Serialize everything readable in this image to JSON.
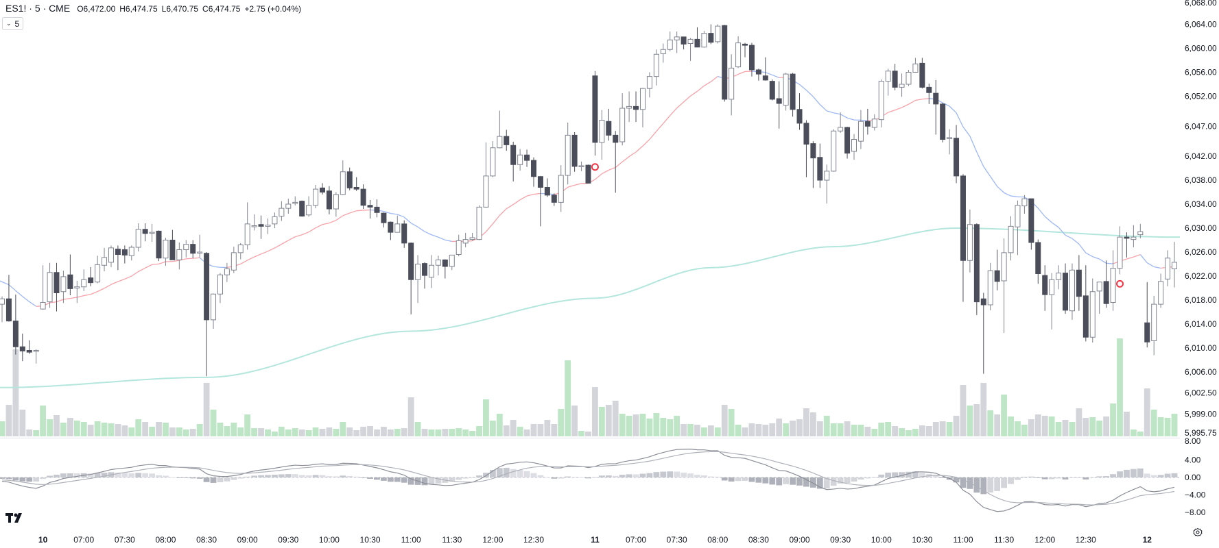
{
  "header": {
    "symbol": "ES1!",
    "interval": "5",
    "exchange": "CME",
    "sep": "·",
    "open_label": "O",
    "open": "6,472.00",
    "high_label": "H",
    "high": "6,474.75",
    "low_label": "L",
    "low": "6,470.75",
    "close_label": "C",
    "close": "6,474.75",
    "change": "+2.75 (+0.04%)"
  },
  "interval_dropdown": {
    "icon": "chevron-down-icon",
    "value": "5"
  },
  "price_axis": [
    "6,068.00",
    "6,064.00",
    "6,060.00",
    "6,056.00",
    "6,052.00",
    "6,047.00",
    "6,042.00",
    "6,038.00",
    "6,034.00",
    "6,030.00",
    "6,026.00",
    "6,022.00",
    "6,018.00",
    "6,014.00",
    "6,010.00",
    "6,006.00",
    "6,002.50",
    "5,999.00",
    "5,995.75"
  ],
  "macd_axis": [
    "8.00",
    "4.00",
    "0.00",
    "−4.00",
    "−8.00"
  ],
  "time_axis": [
    {
      "label": "10",
      "bold": true
    },
    {
      "label": "07:00"
    },
    {
      "label": "07:30"
    },
    {
      "label": "08:00"
    },
    {
      "label": "08:30"
    },
    {
      "label": "09:00"
    },
    {
      "label": "09:30"
    },
    {
      "label": "10:00"
    },
    {
      "label": "10:30"
    },
    {
      "label": "11:00"
    },
    {
      "label": "11:30"
    },
    {
      "label": "12:00"
    },
    {
      "label": "12:30"
    },
    {
      "label": "11",
      "bold": true
    },
    {
      "label": "07:00"
    },
    {
      "label": "07:30"
    },
    {
      "label": "08:00"
    },
    {
      "label": "08:30"
    },
    {
      "label": "09:00"
    },
    {
      "label": "09:30"
    },
    {
      "label": "10:00"
    },
    {
      "label": "10:30"
    },
    {
      "label": "11:00"
    },
    {
      "label": "11:30"
    },
    {
      "label": "12:00"
    },
    {
      "label": "12:30"
    },
    {
      "label": "12",
      "bold": true
    }
  ],
  "colors": {
    "bull_body": "#ffffff",
    "bull_border": "#7f838f",
    "bear_body": "#4b4e5a",
    "volume_up": "#bde5c6",
    "volume_down": "#d3d5db",
    "ema_above": "#f7a1a8",
    "ema_below": "#9db7f5",
    "long_ma": "#b3e6dc",
    "macd_line": "#8a8d96",
    "signal_line": "#aeb1b8",
    "signal_marker": "#f23645"
  },
  "chart_data": {
    "type": "candlestick",
    "symbol": "ES1!",
    "timeframe_minutes": 5,
    "y_range": [
      5995.75,
      6068.0
    ],
    "ohlc": [
      [
        6017.3,
        6018.6,
        6014.3,
        6018.2
      ],
      [
        6018.2,
        6022.2,
        6014.4,
        6014.5
      ],
      [
        6014.5,
        6018.9,
        6008.9,
        6010.2
      ],
      [
        6010.2,
        6012.4,
        6007.8,
        6009.5
      ],
      [
        6009.6,
        6011.3,
        6009.0,
        6009.3
      ],
      [
        6009.5,
        6009.8,
        6007.4,
        6009.6
      ],
      [
        6016.5,
        6023.8,
        6016.4,
        6017.6
      ],
      [
        6017.7,
        6024.2,
        6016.7,
        6022.6
      ],
      [
        6022.6,
        6024.2,
        6016.1,
        6019.2
      ],
      [
        6019.4,
        6022.9,
        6017.5,
        6021.9
      ],
      [
        6022.2,
        6025.6,
        6018.8,
        6019.9
      ],
      [
        6020.0,
        6021.2,
        6017.5,
        6020.2
      ],
      [
        6020.2,
        6023.1,
        6019.5,
        6021.4
      ],
      [
        6021.7,
        6023.5,
        6020.3,
        6020.9
      ],
      [
        6021.0,
        6025.4,
        6020.8,
        6023.9
      ],
      [
        6023.8,
        6026.7,
        6022.8,
        6025.1
      ],
      [
        6024.3,
        6027.1,
        6023.5,
        6026.7
      ],
      [
        6026.5,
        6027.1,
        6023.0,
        6025.6
      ],
      [
        6026.4,
        6027.1,
        6024.1,
        6025.5
      ],
      [
        6025.4,
        6027.1,
        6024.6,
        6026.8
      ],
      [
        6026.8,
        6030.8,
        6026.1,
        6029.8
      ],
      [
        6029.8,
        6030.8,
        6027.8,
        6029.1
      ],
      [
        6029.2,
        6030.7,
        6027.7,
        6029.3
      ],
      [
        6029.5,
        6029.6,
        6024.5,
        6025.0
      ],
      [
        6025.0,
        6028.4,
        6023.7,
        6028.0
      ],
      [
        6028.0,
        6029.7,
        6024.7,
        6024.7
      ],
      [
        6024.7,
        6027.6,
        6023.1,
        6026.4
      ],
      [
        6026.4,
        6028.0,
        6025.1,
        6027.3
      ],
      [
        6027.3,
        6028.0,
        6025.0,
        6025.8
      ],
      [
        6025.9,
        6028.9,
        6025.1,
        6026.0
      ],
      [
        6025.8,
        6026.0,
        6005.3,
        6014.7
      ],
      [
        6014.7,
        6019.1,
        6013.2,
        6019.0
      ],
      [
        6019.0,
        6022.5,
        6017.5,
        6022.2
      ],
      [
        6022.2,
        6024.2,
        6021.0,
        6023.2
      ],
      [
        6023.0,
        6026.9,
        6022.5,
        6025.9
      ],
      [
        6025.9,
        6027.5,
        6024.8,
        6027.2
      ],
      [
        6027.2,
        6034.3,
        6026.4,
        6030.7
      ],
      [
        6030.3,
        6032.3,
        6029.6,
        6030.4
      ],
      [
        6030.6,
        6032.1,
        6028.2,
        6030.3
      ],
      [
        6030.3,
        6031.6,
        6029.0,
        6030.5
      ],
      [
        6030.7,
        6032.6,
        6030.0,
        6031.9
      ],
      [
        6032.0,
        6034.5,
        6031.2,
        6033.3
      ],
      [
        6033.3,
        6034.9,
        6032.4,
        6034.0
      ],
      [
        6034.2,
        6035.3,
        6033.8,
        6034.3
      ],
      [
        6034.5,
        6034.6,
        6031.9,
        6032.0
      ],
      [
        6032.2,
        6035.3,
        6031.9,
        6033.8
      ],
      [
        6033.8,
        6037.2,
        6033.3,
        6036.5
      ],
      [
        6036.7,
        6037.5,
        6035.6,
        6036.0
      ],
      [
        6036.2,
        6037.0,
        6032.3,
        6033.2
      ],
      [
        6033.2,
        6036.0,
        6031.9,
        6035.6
      ],
      [
        6035.6,
        6041.3,
        6035.5,
        6039.4
      ],
      [
        6039.4,
        6040.1,
        6036.3,
        6036.7
      ],
      [
        6036.8,
        6038.5,
        6036.2,
        6036.5
      ],
      [
        6036.5,
        6037.3,
        6033.2,
        6033.8
      ],
      [
        6033.8,
        6034.7,
        6031.6,
        6033.5
      ],
      [
        6033.5,
        6034.8,
        6031.8,
        6032.6
      ],
      [
        6032.5,
        6032.6,
        6030.1,
        6030.9
      ],
      [
        6031.0,
        6031.1,
        6028.0,
        6029.3
      ],
      [
        6029.3,
        6032.1,
        6029.3,
        6030.7
      ],
      [
        6030.7,
        6031.3,
        6026.7,
        6027.5
      ],
      [
        6027.5,
        6027.6,
        6015.6,
        6021.4
      ],
      [
        6021.4,
        6025.5,
        6017.5,
        6024.0
      ],
      [
        6024.1,
        6024.3,
        6019.9,
        6022.1
      ],
      [
        6021.8,
        6025.5,
        6020.0,
        6023.8
      ],
      [
        6023.8,
        6025.4,
        6022.1,
        6024.7
      ],
      [
        6024.7,
        6024.8,
        6021.6,
        6023.6
      ],
      [
        6023.6,
        6025.5,
        6023.0,
        6025.5
      ],
      [
        6025.6,
        6028.9,
        6025.3,
        6027.9
      ],
      [
        6027.5,
        6029.2,
        6026.8,
        6028.1
      ],
      [
        6028.1,
        6029.2,
        6027.9,
        6028.4
      ],
      [
        6028.1,
        6033.8,
        6028.0,
        6033.5
      ],
      [
        6033.5,
        6044.3,
        6033.4,
        6038.7
      ],
      [
        6038.7,
        6044.5,
        6038.5,
        6043.4
      ],
      [
        6043.4,
        6049.6,
        6043.3,
        6045.3
      ],
      [
        6045.3,
        6046.4,
        6042.9,
        6043.9
      ],
      [
        6043.8,
        6044.4,
        6037.8,
        6040.6
      ],
      [
        6040.6,
        6043.2,
        6039.6,
        6042.2
      ],
      [
        6042.2,
        6043.1,
        6040.2,
        6041.3
      ],
      [
        6041.3,
        6041.8,
        6036.9,
        6038.6
      ],
      [
        6038.6,
        6038.7,
        6030.3,
        6036.8
      ],
      [
        6036.8,
        6038.3,
        6035.2,
        6035.5
      ],
      [
        6035.5,
        6035.8,
        6033.7,
        6034.3
      ],
      [
        6034.3,
        6040.5,
        6032.7,
        6038.8
      ],
      [
        6038.8,
        6047.6,
        6037.3,
        6045.5
      ],
      [
        6045.5,
        6046.0,
        6039.4,
        6040.3
      ],
      [
        6040.3,
        6041.1,
        6039.5,
        6040.4
      ],
      [
        6040.5,
        6040.6,
        6037.5,
        6037.5
      ],
      [
        6055.4,
        6056.2,
        6042.1,
        6044.3
      ],
      [
        6044.3,
        6049.7,
        6041.4,
        6048.0
      ],
      [
        6047.8,
        6049.9,
        6044.6,
        6045.5
      ],
      [
        6045.5,
        6046.2,
        6035.9,
        6044.3
      ],
      [
        6044.4,
        6052.5,
        6043.8,
        6050.0
      ],
      [
        6050.0,
        6052.8,
        6047.7,
        6050.3
      ],
      [
        6050.3,
        6052.8,
        6047.7,
        6049.8
      ],
      [
        6049.8,
        6053.4,
        6046.8,
        6053.3
      ],
      [
        6053.3,
        6056.0,
        6051.8,
        6055.3
      ],
      [
        6055.3,
        6059.8,
        6053.8,
        6059.0
      ],
      [
        6059.1,
        6060.8,
        6057.6,
        6059.8
      ],
      [
        6059.8,
        6062.8,
        6059.5,
        6061.4
      ],
      [
        6061.4,
        6062.8,
        6059.2,
        6061.9
      ],
      [
        6061.9,
        6061.9,
        6059.8,
        6060.7
      ],
      [
        6060.8,
        6061.7,
        6057.9,
        6061.5
      ],
      [
        6061.5,
        6063.5,
        6060.2,
        6060.2
      ],
      [
        6060.2,
        6062.9,
        6060.1,
        6062.5
      ],
      [
        6062.5,
        6064.0,
        6060.7,
        6061.0
      ],
      [
        6061.1,
        6064.0,
        6060.8,
        6063.7
      ],
      [
        6063.8,
        6063.9,
        6051.1,
        6051.5
      ],
      [
        6051.5,
        6059.0,
        6048.8,
        6056.7
      ],
      [
        6056.9,
        6062.0,
        6056.7,
        6060.9
      ],
      [
        6060.7,
        6060.9,
        6058.5,
        6060.5
      ],
      [
        6060.5,
        6060.9,
        6055.3,
        6056.4
      ],
      [
        6056.4,
        6056.6,
        6054.6,
        6055.7
      ],
      [
        6055.4,
        6058.5,
        6054.6,
        6054.7
      ],
      [
        6054.5,
        6054.8,
        6051.3,
        6051.5
      ],
      [
        6051.6,
        6054.5,
        6046.6,
        6050.8
      ],
      [
        6050.5,
        6055.9,
        6049.6,
        6055.7
      ],
      [
        6055.7,
        6055.9,
        6048.6,
        6049.8
      ],
      [
        6049.8,
        6052.5,
        6046.4,
        6047.5
      ],
      [
        6047.5,
        6048.0,
        6038.5,
        6044.0
      ],
      [
        6044.1,
        6044.5,
        6036.7,
        6041.7
      ],
      [
        6041.8,
        6044.1,
        6036.7,
        6038.0
      ],
      [
        6038.0,
        6040.6,
        6034.1,
        6039.5
      ],
      [
        6039.5,
        6046.5,
        6039.4,
        6046.2
      ],
      [
        6046.2,
        6049.3,
        6045.9,
        6046.8
      ],
      [
        6046.8,
        6046.9,
        6041.6,
        6042.5
      ],
      [
        6042.8,
        6045.7,
        6041.4,
        6044.8
      ],
      [
        6044.5,
        6049.7,
        6043.2,
        6047.8
      ],
      [
        6047.8,
        6049.9,
        6045.6,
        6047.0
      ],
      [
        6046.8,
        6049.0,
        6046.3,
        6048.2
      ],
      [
        6048.1,
        6054.8,
        6046.8,
        6054.5
      ],
      [
        6054.5,
        6056.6,
        6052.1,
        6056.2
      ],
      [
        6056.2,
        6057.4,
        6053.0,
        6053.5
      ],
      [
        6053.5,
        6055.8,
        6051.9,
        6054.0
      ],
      [
        6054.0,
        6056.4,
        6053.7,
        6056.0
      ],
      [
        6056.0,
        6058.4,
        6056.0,
        6057.4
      ],
      [
        6057.5,
        6058.4,
        6053.3,
        6053.5
      ],
      [
        6053.5,
        6054.1,
        6050.7,
        6052.6
      ],
      [
        6052.5,
        6054.7,
        6045.6,
        6050.7
      ],
      [
        6050.7,
        6050.9,
        6044.3,
        6044.8
      ],
      [
        6045.0,
        6046.5,
        6042.3,
        6045.1
      ],
      [
        6045.0,
        6047.2,
        6037.5,
        6038.7
      ],
      [
        6038.7,
        6039.0,
        6017.7,
        6024.6
      ],
      [
        6024.6,
        6033.1,
        6022.6,
        6030.6
      ],
      [
        6030.6,
        6030.8,
        6015.5,
        6017.7
      ],
      [
        6018.2,
        6019.2,
        6005.7,
        6017.2
      ],
      [
        6017.2,
        6024.2,
        6016.3,
        6022.9
      ],
      [
        6022.9,
        6026.4,
        6019.6,
        6021.1
      ],
      [
        6021.2,
        6028.3,
        6012.5,
        6025.9
      ],
      [
        6025.9,
        6032.0,
        6024.6,
        6030.3
      ],
      [
        6030.2,
        6034.6,
        6025.5,
        6033.8
      ],
      [
        6033.7,
        6035.5,
        6032.4,
        6034.9
      ],
      [
        6034.9,
        6034.9,
        6026.4,
        6027.6
      ],
      [
        6027.6,
        6028.1,
        6020.7,
        6022.4
      ],
      [
        6022.1,
        6023.8,
        6016.2,
        6018.9
      ],
      [
        6018.9,
        6022.5,
        6013.1,
        6021.4
      ],
      [
        6021.4,
        6023.8,
        6019.8,
        6022.5
      ],
      [
        6022.5,
        6024.1,
        6015.7,
        6016.3
      ],
      [
        6016.2,
        6024.1,
        6014.7,
        6023.0
      ],
      [
        6023.0,
        6025.5,
        6016.2,
        6018.6
      ],
      [
        6018.7,
        6023.8,
        6011.1,
        6011.8
      ],
      [
        6011.8,
        6021.6,
        6010.9,
        6019.4
      ],
      [
        6019.5,
        6021.0,
        6015.7,
        6021.0
      ],
      [
        6021.1,
        6024.6,
        6016.7,
        6017.4
      ],
      [
        6017.6,
        6026.3,
        6016.2,
        6023.3
      ],
      [
        6023.3,
        6030.3,
        6022.3,
        6028.5
      ],
      [
        6028.5,
        6029.3,
        6025.1,
        6028.3
      ],
      [
        6028.1,
        6030.5,
        6026.8,
        6028.5
      ],
      [
        6028.9,
        6030.7,
        6028.3,
        6029.4
      ],
      [
        6014.2,
        6021.0,
        6010.1,
        6011.0
      ],
      [
        6011.2,
        6018.7,
        6008.8,
        6017.3
      ],
      [
        6017.3,
        6022.4,
        6016.7,
        6021.1
      ],
      [
        6021.5,
        6026.3,
        6020.3,
        6025.0
      ],
      [
        6023.2,
        6027.7,
        6020.1,
        6024.3
      ]
    ],
    "volume": [
      22,
      46,
      127,
      39,
      10,
      9,
      45,
      25,
      31,
      20,
      27,
      23,
      21,
      17,
      22,
      20,
      19,
      18,
      16,
      13,
      25,
      21,
      14,
      21,
      20,
      13,
      13,
      10,
      11,
      18,
      78,
      39,
      20,
      15,
      20,
      13,
      32,
      12,
      12,
      10,
      7,
      14,
      10,
      12,
      10,
      9,
      13,
      11,
      13,
      11,
      21,
      13,
      9,
      14,
      15,
      10,
      14,
      10,
      11,
      12,
      57,
      21,
      11,
      10,
      10,
      11,
      11,
      12,
      10,
      8,
      15,
      54,
      23,
      33,
      16,
      24,
      14,
      10,
      18,
      18,
      24,
      18,
      40,
      111,
      45,
      8,
      7,
      72,
      43,
      46,
      52,
      33,
      30,
      32,
      33,
      26,
      34,
      27,
      25,
      30,
      18,
      18,
      17,
      13,
      16,
      13,
      46,
      40,
      17,
      13,
      19,
      18,
      17,
      19,
      26,
      19,
      23,
      25,
      41,
      35,
      22,
      30,
      19,
      19,
      22,
      17,
      17,
      14,
      11,
      20,
      21,
      15,
      12,
      9,
      11,
      16,
      15,
      21,
      22,
      21,
      30,
      75,
      45,
      47,
      78,
      38,
      32,
      61,
      29,
      22,
      17,
      25,
      32,
      30,
      29,
      21,
      24,
      21,
      41,
      27,
      28,
      23,
      29,
      48,
      143,
      36,
      10,
      7,
      70,
      39,
      28,
      27,
      33
    ],
    "long_ma": {
      "bars": [
        1,
        31,
        61,
        88,
        105,
        123,
        141,
        173
      ],
      "values": [
        6003.4,
        6005.1,
        6012.8,
        6018.3,
        6023.4,
        6026.9,
        6030.0,
        6028.5
      ]
    },
    "ema_period": 20,
    "macd_params": [
      12,
      26,
      9
    ],
    "signals": [
      {
        "bar": 88,
        "price": 6040.2
      },
      {
        "bar": 165,
        "price": 6020.7
      }
    ]
  },
  "logo": "TV",
  "settings_icon": "gear-icon"
}
